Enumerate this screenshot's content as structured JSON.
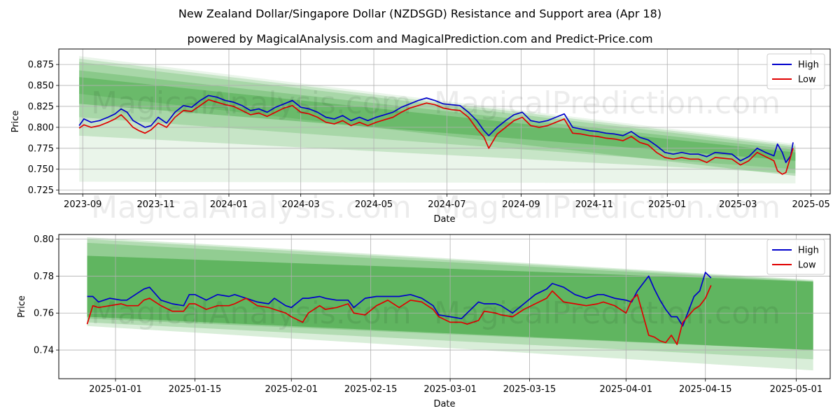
{
  "title": "New Zealand Dollar/Singapore Dollar (NZDSGD) Resistance and Support area (Apr 18)",
  "subtitle": "powered by MagicalAnalysis.com and MagicalPrediction.com and Predict-Price.com",
  "watermarks": [
    "MagicalAnalysis.com",
    "MagicalPrediction.com"
  ],
  "colors": {
    "high": "#0000cc",
    "low": "#e00000",
    "band": "#2e9e2e",
    "grid": "#b0b0b0"
  },
  "chart_data": [
    {
      "type": "line",
      "xlabel": "Date",
      "ylabel": "Price",
      "xlim": [
        "2023-08-12",
        "2025-05-17"
      ],
      "ylim": [
        0.7205,
        0.8935
      ],
      "xticks": [
        "2023-09",
        "2023-11",
        "2024-01",
        "2024-03",
        "2024-05",
        "2024-07",
        "2024-09",
        "2024-11",
        "2025-01",
        "2025-03",
        "2025-05"
      ],
      "xtick_dates": [
        "2023-09-01",
        "2023-11-01",
        "2024-01-01",
        "2024-03-01",
        "2024-05-01",
        "2024-07-01",
        "2024-09-01",
        "2024-11-01",
        "2025-01-01",
        "2025-03-01",
        "2025-05-01"
      ],
      "yticks": [
        "0.725",
        "0.750",
        "0.775",
        "0.800",
        "0.825",
        "0.850",
        "0.875"
      ],
      "legend": [
        "High",
        "Low"
      ],
      "legend_position": "top-right",
      "grid": true,
      "bands": [
        {
          "x": [
            "2023-08-29",
            "2025-04-18"
          ],
          "upper": [
            0.885,
            0.78
          ],
          "lower": [
            0.735,
            0.733
          ]
        },
        {
          "x": [
            "2023-08-29",
            "2025-04-18"
          ],
          "upper": [
            0.882,
            0.778
          ],
          "lower": [
            0.79,
            0.745
          ]
        },
        {
          "x": [
            "2023-08-29",
            "2025-04-18"
          ],
          "upper": [
            0.878,
            0.776
          ],
          "lower": [
            0.812,
            0.75
          ]
        },
        {
          "x": [
            "2023-08-29",
            "2025-04-18"
          ],
          "upper": [
            0.868,
            0.773
          ],
          "lower": [
            0.84,
            0.742
          ]
        },
        {
          "x": [
            "2023-08-29",
            "2025-04-18"
          ],
          "upper": [
            0.86,
            0.77
          ],
          "lower": [
            0.828,
            0.76
          ]
        }
      ],
      "series": [
        {
          "name": "High",
          "x": [
            "2023-08-29",
            "2023-09-02",
            "2023-09-08",
            "2023-09-15",
            "2023-09-22",
            "2023-09-28",
            "2023-10-03",
            "2023-10-08",
            "2023-10-13",
            "2023-10-18",
            "2023-10-23",
            "2023-10-28",
            "2023-11-03",
            "2023-11-10",
            "2023-11-17",
            "2023-11-24",
            "2023-12-01",
            "2023-12-08",
            "2023-12-15",
            "2023-12-22",
            "2023-12-29",
            "2024-01-05",
            "2024-01-12",
            "2024-01-19",
            "2024-01-26",
            "2024-02-02",
            "2024-02-09",
            "2024-02-16",
            "2024-02-23",
            "2024-03-01",
            "2024-03-08",
            "2024-03-15",
            "2024-03-22",
            "2024-03-29",
            "2024-04-05",
            "2024-04-12",
            "2024-04-19",
            "2024-04-26",
            "2024-05-03",
            "2024-05-10",
            "2024-05-17",
            "2024-05-24",
            "2024-05-31",
            "2024-06-07",
            "2024-06-14",
            "2024-06-21",
            "2024-06-28",
            "2024-07-05",
            "2024-07-12",
            "2024-07-19",
            "2024-07-26",
            "2024-08-01",
            "2024-08-05",
            "2024-08-12",
            "2024-08-19",
            "2024-08-26",
            "2024-09-02",
            "2024-09-09",
            "2024-09-16",
            "2024-09-23",
            "2024-09-30",
            "2024-10-07",
            "2024-10-14",
            "2024-10-21",
            "2024-10-28",
            "2024-11-04",
            "2024-11-11",
            "2024-11-18",
            "2024-11-25",
            "2024-12-02",
            "2024-12-09",
            "2024-12-16",
            "2024-12-23",
            "2024-12-30",
            "2025-01-06",
            "2025-01-13",
            "2025-01-20",
            "2025-01-27",
            "2025-02-03",
            "2025-02-10",
            "2025-02-17",
            "2025-02-24",
            "2025-03-03",
            "2025-03-10",
            "2025-03-17",
            "2025-03-24",
            "2025-03-31",
            "2025-04-03",
            "2025-04-07",
            "2025-04-10",
            "2025-04-14",
            "2025-04-16"
          ],
          "values": [
            0.802,
            0.81,
            0.806,
            0.808,
            0.812,
            0.816,
            0.822,
            0.818,
            0.808,
            0.804,
            0.8,
            0.802,
            0.812,
            0.805,
            0.818,
            0.826,
            0.824,
            0.832,
            0.838,
            0.836,
            0.832,
            0.83,
            0.826,
            0.82,
            0.822,
            0.818,
            0.824,
            0.828,
            0.832,
            0.824,
            0.822,
            0.818,
            0.812,
            0.81,
            0.814,
            0.808,
            0.812,
            0.808,
            0.812,
            0.815,
            0.818,
            0.824,
            0.828,
            0.832,
            0.835,
            0.832,
            0.828,
            0.827,
            0.826,
            0.818,
            0.808,
            0.796,
            0.79,
            0.8,
            0.808,
            0.815,
            0.818,
            0.808,
            0.806,
            0.808,
            0.812,
            0.816,
            0.8,
            0.798,
            0.796,
            0.795,
            0.793,
            0.792,
            0.79,
            0.795,
            0.788,
            0.785,
            0.778,
            0.77,
            0.768,
            0.77,
            0.768,
            0.768,
            0.765,
            0.77,
            0.769,
            0.768,
            0.76,
            0.765,
            0.775,
            0.77,
            0.766,
            0.78,
            0.77,
            0.758,
            0.766,
            0.782
          ]
        },
        {
          "name": "Low",
          "x": [
            "2023-08-29",
            "2023-09-02",
            "2023-09-08",
            "2023-09-15",
            "2023-09-22",
            "2023-09-28",
            "2023-10-03",
            "2023-10-08",
            "2023-10-13",
            "2023-10-18",
            "2023-10-23",
            "2023-10-28",
            "2023-11-03",
            "2023-11-10",
            "2023-11-17",
            "2023-11-24",
            "2023-12-01",
            "2023-12-08",
            "2023-12-15",
            "2023-12-22",
            "2023-12-29",
            "2024-01-05",
            "2024-01-12",
            "2024-01-19",
            "2024-01-26",
            "2024-02-02",
            "2024-02-09",
            "2024-02-16",
            "2024-02-23",
            "2024-03-01",
            "2024-03-08",
            "2024-03-15",
            "2024-03-22",
            "2024-03-29",
            "2024-04-05",
            "2024-04-12",
            "2024-04-19",
            "2024-04-26",
            "2024-05-03",
            "2024-05-10",
            "2024-05-17",
            "2024-05-24",
            "2024-05-31",
            "2024-06-07",
            "2024-06-14",
            "2024-06-21",
            "2024-06-28",
            "2024-07-05",
            "2024-07-12",
            "2024-07-19",
            "2024-07-26",
            "2024-08-01",
            "2024-08-05",
            "2024-08-12",
            "2024-08-19",
            "2024-08-26",
            "2024-09-02",
            "2024-09-09",
            "2024-09-16",
            "2024-09-23",
            "2024-09-30",
            "2024-10-07",
            "2024-10-14",
            "2024-10-21",
            "2024-10-28",
            "2024-11-04",
            "2024-11-11",
            "2024-11-18",
            "2024-11-25",
            "2024-12-02",
            "2024-12-09",
            "2024-12-16",
            "2024-12-23",
            "2024-12-30",
            "2025-01-06",
            "2025-01-13",
            "2025-01-20",
            "2025-01-27",
            "2025-02-03",
            "2025-02-10",
            "2025-02-17",
            "2025-02-24",
            "2025-03-03",
            "2025-03-10",
            "2025-03-17",
            "2025-03-24",
            "2025-03-31",
            "2025-04-03",
            "2025-04-07",
            "2025-04-10",
            "2025-04-14",
            "2025-04-16"
          ],
          "values": [
            0.799,
            0.803,
            0.8,
            0.802,
            0.806,
            0.81,
            0.815,
            0.808,
            0.8,
            0.796,
            0.793,
            0.797,
            0.805,
            0.8,
            0.812,
            0.82,
            0.819,
            0.826,
            0.833,
            0.83,
            0.827,
            0.825,
            0.82,
            0.815,
            0.817,
            0.813,
            0.818,
            0.823,
            0.826,
            0.818,
            0.816,
            0.812,
            0.806,
            0.804,
            0.808,
            0.802,
            0.806,
            0.802,
            0.806,
            0.809,
            0.812,
            0.818,
            0.823,
            0.826,
            0.829,
            0.827,
            0.823,
            0.821,
            0.82,
            0.812,
            0.798,
            0.788,
            0.775,
            0.792,
            0.8,
            0.808,
            0.812,
            0.802,
            0.8,
            0.802,
            0.806,
            0.81,
            0.793,
            0.792,
            0.79,
            0.789,
            0.787,
            0.786,
            0.784,
            0.789,
            0.782,
            0.779,
            0.77,
            0.764,
            0.762,
            0.764,
            0.762,
            0.762,
            0.758,
            0.764,
            0.763,
            0.762,
            0.755,
            0.76,
            0.77,
            0.765,
            0.76,
            0.748,
            0.744,
            0.746,
            0.765,
            0.775
          ]
        }
      ]
    },
    {
      "type": "line",
      "xlabel": "Date",
      "ylabel": "Price",
      "xlim": [
        "2024-12-22",
        "2025-05-07"
      ],
      "ylim": [
        0.7245,
        0.8025
      ],
      "xticks": [
        "2025-01-01",
        "2025-01-15",
        "2025-02-01",
        "2025-02-15",
        "2025-03-01",
        "2025-03-15",
        "2025-04-01",
        "2025-04-15",
        "2025-05-01"
      ],
      "yticks": [
        "0.74",
        "0.76",
        "0.78",
        "0.80"
      ],
      "legend": [
        "High",
        "Low"
      ],
      "legend_position": "top-right",
      "grid": true,
      "bands": [
        {
          "x": [
            "2024-12-27",
            "2025-05-04"
          ],
          "upper": [
            0.801,
            0.778
          ],
          "lower": [
            0.753,
            0.729
          ]
        },
        {
          "x": [
            "2024-12-27",
            "2025-05-04"
          ],
          "upper": [
            0.8,
            0.7775
          ],
          "lower": [
            0.755,
            0.735
          ]
        },
        {
          "x": [
            "2024-12-27",
            "2025-05-04"
          ],
          "upper": [
            0.798,
            0.777
          ],
          "lower": [
            0.757,
            0.74
          ]
        },
        {
          "x": [
            "2024-12-27",
            "2025-05-04"
          ],
          "upper": [
            0.791,
            0.777
          ],
          "lower": [
            0.758,
            0.74
          ]
        }
      ],
      "series": [
        {
          "name": "High",
          "x": [
            "2024-12-27",
            "2024-12-28",
            "2024-12-29",
            "2024-12-31",
            "2025-01-02",
            "2025-01-03",
            "2025-01-05",
            "2025-01-06",
            "2025-01-07",
            "2025-01-09",
            "2025-01-11",
            "2025-01-13",
            "2025-01-14",
            "2025-01-15",
            "2025-01-17",
            "2025-01-19",
            "2025-01-21",
            "2025-01-22",
            "2025-01-24",
            "2025-01-26",
            "2025-01-28",
            "2025-01-29",
            "2025-01-31",
            "2025-02-01",
            "2025-02-03",
            "2025-02-04",
            "2025-02-06",
            "2025-02-07",
            "2025-02-09",
            "2025-02-11",
            "2025-02-12",
            "2025-02-14",
            "2025-02-16",
            "2025-02-18",
            "2025-02-20",
            "2025-02-22",
            "2025-02-24",
            "2025-02-26",
            "2025-02-27",
            "2025-03-01",
            "2025-03-03",
            "2025-03-04",
            "2025-03-06",
            "2025-03-07",
            "2025-03-09",
            "2025-03-10",
            "2025-03-12",
            "2025-03-14",
            "2025-03-16",
            "2025-03-18",
            "2025-03-19",
            "2025-03-21",
            "2025-03-23",
            "2025-03-25",
            "2025-03-27",
            "2025-03-28",
            "2025-03-30",
            "2025-04-01",
            "2025-04-02",
            "2025-04-03",
            "2025-04-05",
            "2025-04-06",
            "2025-04-07",
            "2025-04-08",
            "2025-04-09",
            "2025-04-10",
            "2025-04-11",
            "2025-04-13",
            "2025-04-14",
            "2025-04-15",
            "2025-04-16"
          ],
          "values": [
            0.769,
            0.769,
            0.766,
            0.768,
            0.767,
            0.767,
            0.771,
            0.773,
            0.774,
            0.767,
            0.765,
            0.764,
            0.77,
            0.77,
            0.767,
            0.77,
            0.769,
            0.77,
            0.768,
            0.766,
            0.765,
            0.768,
            0.764,
            0.763,
            0.768,
            0.768,
            0.769,
            0.768,
            0.767,
            0.767,
            0.763,
            0.768,
            0.769,
            0.769,
            0.769,
            0.77,
            0.768,
            0.764,
            0.759,
            0.758,
            0.757,
            0.76,
            0.766,
            0.765,
            0.765,
            0.764,
            0.76,
            0.765,
            0.77,
            0.773,
            0.776,
            0.774,
            0.77,
            0.768,
            0.77,
            0.77,
            0.768,
            0.767,
            0.766,
            0.772,
            0.78,
            0.773,
            0.767,
            0.762,
            0.758,
            0.758,
            0.753,
            0.769,
            0.772,
            0.782,
            0.779
          ]
        },
        {
          "name": "Low",
          "x": [
            "2024-12-27",
            "2024-12-28",
            "2024-12-29",
            "2024-12-31",
            "2025-01-02",
            "2025-01-03",
            "2025-01-05",
            "2025-01-06",
            "2025-01-07",
            "2025-01-09",
            "2025-01-11",
            "2025-01-13",
            "2025-01-14",
            "2025-01-15",
            "2025-01-17",
            "2025-01-19",
            "2025-01-21",
            "2025-01-22",
            "2025-01-24",
            "2025-01-26",
            "2025-01-28",
            "2025-01-29",
            "2025-01-31",
            "2025-02-01",
            "2025-02-03",
            "2025-02-04",
            "2025-02-06",
            "2025-02-07",
            "2025-02-09",
            "2025-02-11",
            "2025-02-12",
            "2025-02-14",
            "2025-02-16",
            "2025-02-18",
            "2025-02-20",
            "2025-02-22",
            "2025-02-24",
            "2025-02-26",
            "2025-02-27",
            "2025-03-01",
            "2025-03-03",
            "2025-03-04",
            "2025-03-06",
            "2025-03-07",
            "2025-03-09",
            "2025-03-10",
            "2025-03-12",
            "2025-03-14",
            "2025-03-16",
            "2025-03-18",
            "2025-03-19",
            "2025-03-21",
            "2025-03-23",
            "2025-03-25",
            "2025-03-27",
            "2025-03-28",
            "2025-03-30",
            "2025-04-01",
            "2025-04-02",
            "2025-04-03",
            "2025-04-05",
            "2025-04-06",
            "2025-04-07",
            "2025-04-08",
            "2025-04-09",
            "2025-04-10",
            "2025-04-11",
            "2025-04-13",
            "2025-04-14",
            "2025-04-15",
            "2025-04-16"
          ],
          "values": [
            0.754,
            0.764,
            0.763,
            0.764,
            0.765,
            0.764,
            0.764,
            0.767,
            0.768,
            0.764,
            0.761,
            0.761,
            0.765,
            0.765,
            0.762,
            0.764,
            0.764,
            0.765,
            0.768,
            0.764,
            0.763,
            0.762,
            0.76,
            0.758,
            0.755,
            0.76,
            0.764,
            0.762,
            0.763,
            0.765,
            0.76,
            0.759,
            0.764,
            0.767,
            0.763,
            0.767,
            0.766,
            0.762,
            0.758,
            0.755,
            0.755,
            0.754,
            0.756,
            0.761,
            0.76,
            0.759,
            0.758,
            0.762,
            0.765,
            0.768,
            0.772,
            0.766,
            0.765,
            0.764,
            0.765,
            0.766,
            0.764,
            0.76,
            0.767,
            0.77,
            0.748,
            0.747,
            0.745,
            0.744,
            0.748,
            0.743,
            0.755,
            0.762,
            0.764,
            0.768,
            0.775
          ]
        }
      ]
    }
  ]
}
